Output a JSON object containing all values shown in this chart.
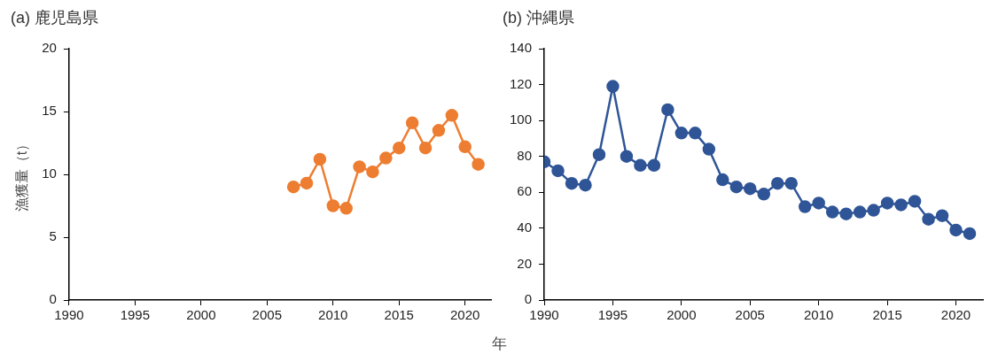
{
  "chart_data": [
    {
      "type": "line",
      "title": "(a) 鹿児島県",
      "xlabel": "年",
      "ylabel": "漁獲量（t）",
      "xlim": [
        1990,
        2022
      ],
      "xticks": [
        1990,
        1995,
        2000,
        2005,
        2010,
        2015,
        2020
      ],
      "ylim": [
        0,
        20
      ],
      "yticks": [
        0,
        5,
        10,
        15,
        20
      ],
      "grid": false,
      "legend": false,
      "marker": "circle",
      "series": [
        {
          "color": "#ed7d31",
          "x": [
            2007,
            2008,
            2009,
            2010,
            2011,
            2012,
            2013,
            2014,
            2015,
            2016,
            2017,
            2018,
            2019,
            2020,
            2021
          ],
          "values": [
            9.0,
            9.3,
            11.2,
            7.5,
            7.3,
            10.6,
            10.2,
            11.3,
            12.1,
            14.1,
            12.1,
            13.5,
            14.7,
            12.2,
            10.8
          ]
        }
      ]
    },
    {
      "type": "line",
      "title": "(b) 沖縄県",
      "xlim": [
        1990,
        2022
      ],
      "xticks": [
        1990,
        1995,
        2000,
        2005,
        2010,
        2015,
        2020
      ],
      "ylim": [
        0,
        140
      ],
      "yticks": [
        0,
        20,
        40,
        60,
        80,
        100,
        120,
        140
      ],
      "grid": false,
      "legend": false,
      "marker": "circle",
      "series": [
        {
          "color": "#2f5597",
          "x": [
            1990,
            1991,
            1992,
            1993,
            1994,
            1995,
            1996,
            1997,
            1998,
            1999,
            2000,
            2001,
            2002,
            2003,
            2004,
            2005,
            2006,
            2007,
            2008,
            2009,
            2010,
            2011,
            2012,
            2013,
            2014,
            2015,
            2016,
            2017,
            2018,
            2019,
            2020,
            2021
          ],
          "values": [
            77,
            72,
            65,
            64,
            81,
            119,
            80,
            75,
            75,
            106,
            93,
            93,
            84,
            67,
            63,
            62,
            59,
            65,
            65,
            52,
            54,
            49,
            48,
            49,
            50,
            54,
            53,
            55,
            45,
            47,
            39,
            37
          ]
        }
      ]
    }
  ]
}
